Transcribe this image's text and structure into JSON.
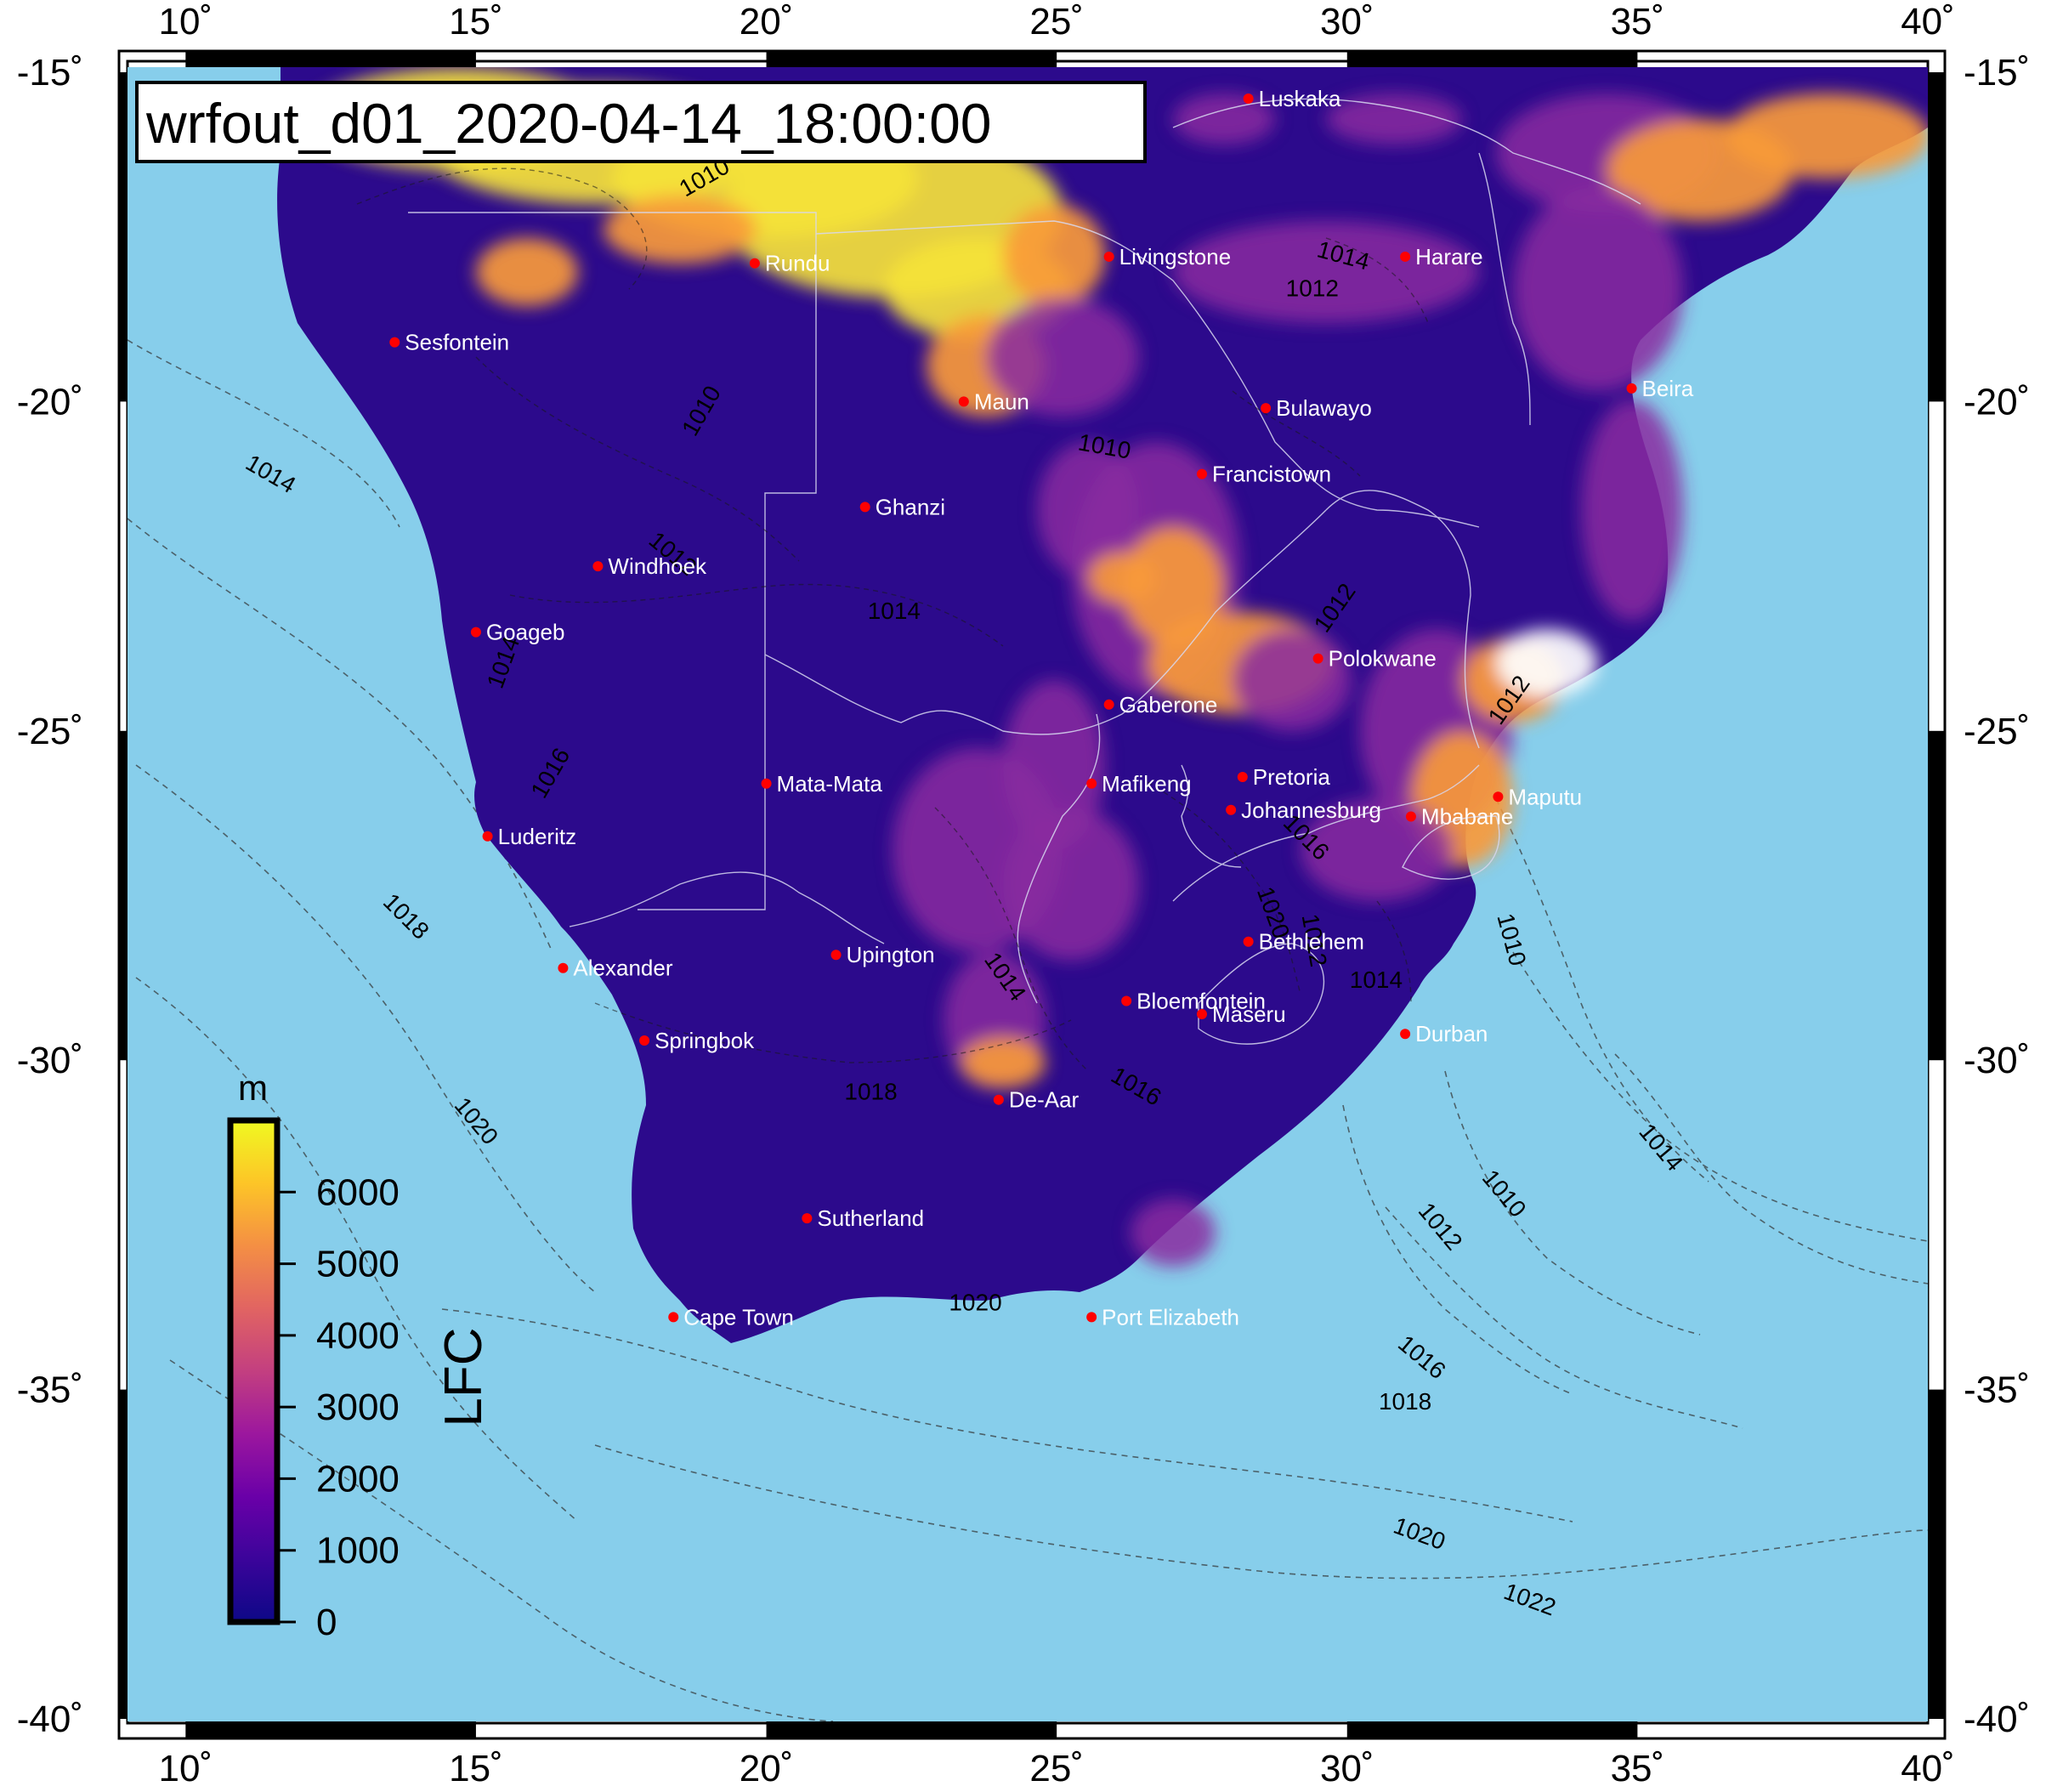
{
  "title": "wrfout_d01_2020-04-14_18:00:00",
  "colors": {
    "ocean": "#87ceeb",
    "land_low": "#2c0a8c",
    "land_mid": "#8a2aa0",
    "land_high": "#f89a3a",
    "land_max": "#f5e23a",
    "city_marker": "#ff0000",
    "city_label": "#ffffff",
    "frame": "#000000"
  },
  "axes": {
    "x_labels": [
      "10˚",
      "15˚",
      "20˚",
      "25˚",
      "30˚",
      "35˚",
      "40˚"
    ],
    "y_labels": [
      "-15˚",
      "-20˚",
      "-25˚",
      "-30˚",
      "-35˚",
      "-40˚"
    ]
  },
  "colorbar": {
    "unit": "m",
    "label": "LFC",
    "ticks": [
      "6000",
      "5000",
      "4000",
      "3000",
      "2000",
      "1000",
      "0"
    ],
    "range": [
      0,
      7000
    ],
    "stops": [
      "#0d0887",
      "#3b049a",
      "#6a00a8",
      "#9c179e",
      "#c33f80",
      "#e16462",
      "#f48f44",
      "#fdc527",
      "#f0f921"
    ]
  },
  "cities": [
    {
      "name": "Luskaka",
      "lon": 28.3,
      "lat": -15.4
    },
    {
      "name": "Rundu",
      "lon": 19.8,
      "lat": -17.9
    },
    {
      "name": "Livingstone",
      "lon": 25.9,
      "lat": -17.8
    },
    {
      "name": "Harare",
      "lon": 31.0,
      "lat": -17.8
    },
    {
      "name": "Sesfontein",
      "lon": 13.6,
      "lat": -19.1
    },
    {
      "name": "Beira",
      "lon": 34.9,
      "lat": -19.8
    },
    {
      "name": "Maun",
      "lon": 23.4,
      "lat": -20.0
    },
    {
      "name": "Bulawayo",
      "lon": 28.6,
      "lat": -20.1
    },
    {
      "name": "Francistown",
      "lon": 27.5,
      "lat": -21.1
    },
    {
      "name": "Ghanzi",
      "lon": 21.7,
      "lat": -21.6
    },
    {
      "name": "Windhoek",
      "lon": 17.1,
      "lat": -22.5
    },
    {
      "name": "Goageb",
      "lon": 15.0,
      "lat": -23.5
    },
    {
      "name": "Polokwane",
      "lon": 29.5,
      "lat": -23.9
    },
    {
      "name": "Gaberone",
      "lon": 25.9,
      "lat": -24.6
    },
    {
      "name": "Pretoria",
      "lon": 28.2,
      "lat": -25.7
    },
    {
      "name": "Mata-Mata",
      "lon": 20.0,
      "lat": -25.8
    },
    {
      "name": "Mafikeng",
      "lon": 25.6,
      "lat": -25.8
    },
    {
      "name": "Maputu",
      "lon": 32.6,
      "lat": -26.0
    },
    {
      "name": "Johannesburg",
      "lon": 28.0,
      "lat": -26.2
    },
    {
      "name": "Mbabane",
      "lon": 31.1,
      "lat": -26.3
    },
    {
      "name": "Luderitz",
      "lon": 15.2,
      "lat": -26.6
    },
    {
      "name": "Bethlehem",
      "lon": 28.3,
      "lat": -28.2
    },
    {
      "name": "Upington",
      "lon": 21.2,
      "lat": -28.4
    },
    {
      "name": "Alexander",
      "lon": 16.5,
      "lat": -28.6
    },
    {
      "name": "Bloemfontein",
      "lon": 26.2,
      "lat": -29.1
    },
    {
      "name": "Maseru",
      "lon": 27.5,
      "lat": -29.3
    },
    {
      "name": "Springbok",
      "lon": 17.9,
      "lat": -29.7
    },
    {
      "name": "Durban",
      "lon": 31.0,
      "lat": -29.6
    },
    {
      "name": "De-Aar",
      "lon": 24.0,
      "lat": -30.6
    },
    {
      "name": "Sutherland",
      "lon": 20.7,
      "lat": -32.4
    },
    {
      "name": "Cape Town",
      "lon": 18.4,
      "lat": -33.9
    },
    {
      "name": "Port Elizabeth",
      "lon": 25.6,
      "lat": -33.9
    }
  ],
  "isobar_labels": [
    {
      "text": "1010",
      "lon": 19.0,
      "lat": -16.7,
      "rot": -30
    },
    {
      "text": "1010",
      "lon": 19.0,
      "lat": -20.2,
      "rot": -60
    },
    {
      "text": "1014",
      "lon": 29.9,
      "lat": -17.9,
      "rot": 15
    },
    {
      "text": "1012",
      "lon": 29.4,
      "lat": -18.4,
      "rot": 0
    },
    {
      "text": "1010",
      "lon": 25.8,
      "lat": -20.8,
      "rot": 10
    },
    {
      "text": "1014",
      "lon": 11.4,
      "lat": -21.2,
      "rot": 30
    },
    {
      "text": "1012",
      "lon": 18.3,
      "lat": -22.4,
      "rot": 40
    },
    {
      "text": "1014",
      "lon": 22.2,
      "lat": -23.3,
      "rot": 0
    },
    {
      "text": "1012",
      "lon": 29.9,
      "lat": -23.2,
      "rot": -55
    },
    {
      "text": "1014",
      "lon": 15.6,
      "lat": -24.0,
      "rot": -70
    },
    {
      "text": "1012",
      "lon": 32.9,
      "lat": -24.6,
      "rot": -55
    },
    {
      "text": "1016",
      "lon": 16.4,
      "lat": -25.7,
      "rot": -60
    },
    {
      "text": "1016",
      "lon": 29.2,
      "lat": -26.7,
      "rot": 45
    },
    {
      "text": "1020",
      "lon": 28.6,
      "lat": -27.8,
      "rot": 70
    },
    {
      "text": "1012",
      "lon": 29.3,
      "lat": -28.2,
      "rot": 80
    },
    {
      "text": "1010",
      "lon": 32.7,
      "lat": -28.2,
      "rot": 75
    },
    {
      "text": "1018",
      "lon": 13.7,
      "lat": -27.9,
      "rot": 45
    },
    {
      "text": "1014",
      "lon": 24.0,
      "lat": -28.8,
      "rot": 55
    },
    {
      "text": "1014",
      "lon": 30.5,
      "lat": -28.9,
      "rot": 0
    },
    {
      "text": "1016",
      "lon": 26.3,
      "lat": -30.5,
      "rot": 30
    },
    {
      "text": "1018",
      "lon": 21.8,
      "lat": -30.6,
      "rot": 0
    },
    {
      "text": "1020",
      "lon": 14.9,
      "lat": -31.0,
      "rot": 50
    },
    {
      "text": "1014",
      "lon": 35.3,
      "lat": -31.4,
      "rot": 50
    },
    {
      "text": "1010",
      "lon": 32.6,
      "lat": -32.1,
      "rot": 50
    },
    {
      "text": "1012",
      "lon": 31.5,
      "lat": -32.6,
      "rot": 50
    },
    {
      "text": "1020",
      "lon": 23.6,
      "lat": -33.8,
      "rot": 0
    },
    {
      "text": "1016",
      "lon": 31.2,
      "lat": -34.6,
      "rot": 40
    },
    {
      "text": "1018",
      "lon": 31.0,
      "lat": -35.3,
      "rot": 0
    },
    {
      "text": "1020",
      "lon": 31.2,
      "lat": -37.3,
      "rot": 20
    },
    {
      "text": "1022",
      "lon": 33.1,
      "lat": -38.3,
      "rot": 20
    }
  ]
}
